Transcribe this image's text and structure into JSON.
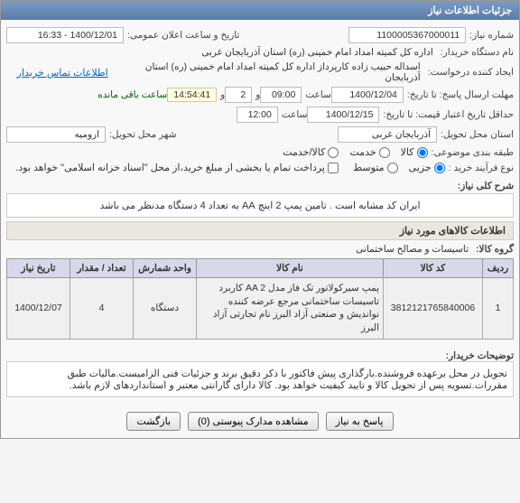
{
  "header": {
    "title": "جزئیات اطلاعات نیاز",
    "close_title": "×"
  },
  "fields": {
    "req_no_lbl": "شماره نیاز:",
    "req_no": "1100005367000011",
    "pub_date_lbl": "تاریخ و ساعت اعلان عمومی:",
    "pub_date": "1400/12/01 - 16:33",
    "buyer_lbl": "نام دستگاه خریدار:",
    "buyer": "اداره کل کمیته امداد امام خمینی (ره) استان آذربایجان غربی",
    "requester_lbl": "ایجاد کننده درخواست:",
    "requester": "اسداله حبیب زاده کارپرداز اداره کل کمیته امداد امام خمینی (ره) استان آذربایجان",
    "contact_link": "اطلاعات تماس خریدار",
    "deadline_lbl": "مهلت ارسال پاسخ: تا تاریخ:",
    "deadline_date": "1400/12/04",
    "time_lbl": "ساعت",
    "deadline_time": "09:00",
    "and_lbl": "و",
    "timer": "14:54:41",
    "timer_suffix": "ساعت باقی مانده",
    "min_valid_lbl": "حداقل تاریخ اعتبار قیمت: تا تاریخ:",
    "min_valid_date": "1400/12/15",
    "min_valid_time": "12:00",
    "province_lbl": "استان محل تحویل:",
    "province": "آذربایجان غربی",
    "city_lbl": "شهر محل تحویل:",
    "city": "ارومیه",
    "class_lbl": "طبقه بندی موضوعی:",
    "class_goods": "کالا",
    "class_service": "خدمت",
    "class_both": "کالا/خدمت",
    "process_lbl": "نوع فرآیند خرید :",
    "proc_low": "جزیی",
    "proc_mid": "متوسط",
    "payment_note": "پرداخت تمام یا بخشی از مبلغ خرید،از محل \"اسناد خزانه اسلامی\" خواهد بود.",
    "pieces_val": "2"
  },
  "summary": {
    "label": "شرح کلی نیاز:",
    "text": "ایران کد مشابه است . تامین پمپ 2 اینچ AA به تعداد 4 دستگاه مدنظر می باشد"
  },
  "items_section": {
    "title": "اطلاعات کالاهای مورد نیاز",
    "group_lbl": "گروه کالا:",
    "group_val": "تاسیسات و مصالح ساختمانی",
    "columns": [
      "ردیف",
      "کد کالا",
      "نام کالا",
      "واحد شمارش",
      "تعداد / مقدار",
      "تاریخ نیاز"
    ],
    "rows": [
      {
        "idx": "1",
        "code": "3812121765840006",
        "name": "پمپ سیرکولاتور تک فاز مدل AA 2 کاربرد تاسیسات ساختمانی مرجع عرضه کننده نواندیش و صنعتی آزاد البرز نام تجارتی آزاد البرز",
        "unit": "دستگاه",
        "qty": "4",
        "date": "1400/12/07"
      }
    ]
  },
  "notes": {
    "label": "توضیحات خریدار:",
    "text": "تحویل در محل برعهده فروشنده.بارگذاری پیش فاکتور با ذکر دقیق برند و جزئیات فنی الزامیست.مالیات طبق مقررات.تسویه پس از تحویل کالا و تایید کیفیت خواهد بود. کالا دارای گارانتی معتبر و استانداردهای لازم باشد."
  },
  "buttons": {
    "reply": "پاسخ به نیاز",
    "attachments": "مشاهده مدارک پیوستی (0)",
    "back": "بازگشت"
  }
}
